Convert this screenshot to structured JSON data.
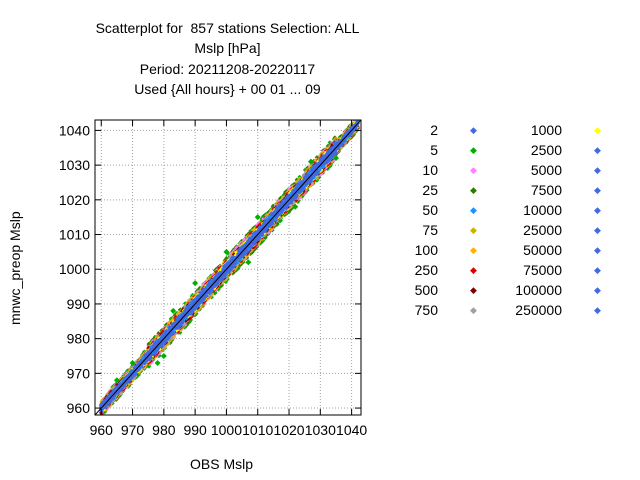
{
  "chart_data": {
    "type": "scatter",
    "title_lines": [
      "Scatterplot for  857 stations Selection: ALL",
      "Mslp [hPa]",
      "Period: 20211208-20220117",
      "Used {All hours} + 00 01 ... 09"
    ],
    "xlabel": "OBS Mslp",
    "ylabel": "mnwc_preop Mslp",
    "xlim": [
      958,
      1043
    ],
    "ylim": [
      958,
      1043
    ],
    "x_ticks": [
      960,
      970,
      980,
      990,
      1000,
      1010,
      1020,
      1030,
      1040
    ],
    "y_ticks": [
      960,
      970,
      980,
      990,
      1000,
      1010,
      1020,
      1030,
      1040
    ],
    "grid": true,
    "diagonal_line": true,
    "legend_position": "right",
    "legend": [
      {
        "label": "2",
        "color": "#4169e1"
      },
      {
        "label": "5",
        "color": "#00b000"
      },
      {
        "label": "10",
        "color": "#ff80ff"
      },
      {
        "label": "25",
        "color": "#2e7d00"
      },
      {
        "label": "50",
        "color": "#1e90ff"
      },
      {
        "label": "75",
        "color": "#c8b400"
      },
      {
        "label": "100",
        "color": "#ffb000"
      },
      {
        "label": "250",
        "color": "#e00000"
      },
      {
        "label": "500",
        "color": "#800000"
      },
      {
        "label": "750",
        "color": "#a0a0a0"
      },
      {
        "label": "1000",
        "color": "#ffff00"
      },
      {
        "label": "2500",
        "color": "#4169e1"
      },
      {
        "label": "5000",
        "color": "#4169e1"
      },
      {
        "label": "7500",
        "color": "#4169e1"
      },
      {
        "label": "10000",
        "color": "#4169e1"
      },
      {
        "label": "25000",
        "color": "#4169e1"
      },
      {
        "label": "50000",
        "color": "#4169e1"
      },
      {
        "label": "75000",
        "color": "#4169e1"
      },
      {
        "label": "100000",
        "color": "#4169e1"
      },
      {
        "label": "250000",
        "color": "#4169e1"
      }
    ],
    "band_halfwidth": [
      {
        "from": 960,
        "to": 975,
        "halfwidth": 2.5
      },
      {
        "from": 975,
        "to": 1035,
        "halfwidth": 3.5
      },
      {
        "from": 1035,
        "to": 1042,
        "halfwidth": 2.0
      }
    ],
    "outliers": [
      {
        "x": 970,
        "y": 973
      },
      {
        "x": 978,
        "y": 973
      },
      {
        "x": 980,
        "y": 975
      },
      {
        "x": 983,
        "y": 988
      },
      {
        "x": 990,
        "y": 996
      },
      {
        "x": 1007,
        "y": 1002
      },
      {
        "x": 1010,
        "y": 1015
      },
      {
        "x": 1022,
        "y": 1018
      },
      {
        "x": 1027,
        "y": 1031
      },
      {
        "x": 1035,
        "y": 1032
      },
      {
        "x": 965,
        "y": 968
      },
      {
        "x": 1000,
        "y": 1005
      }
    ]
  }
}
